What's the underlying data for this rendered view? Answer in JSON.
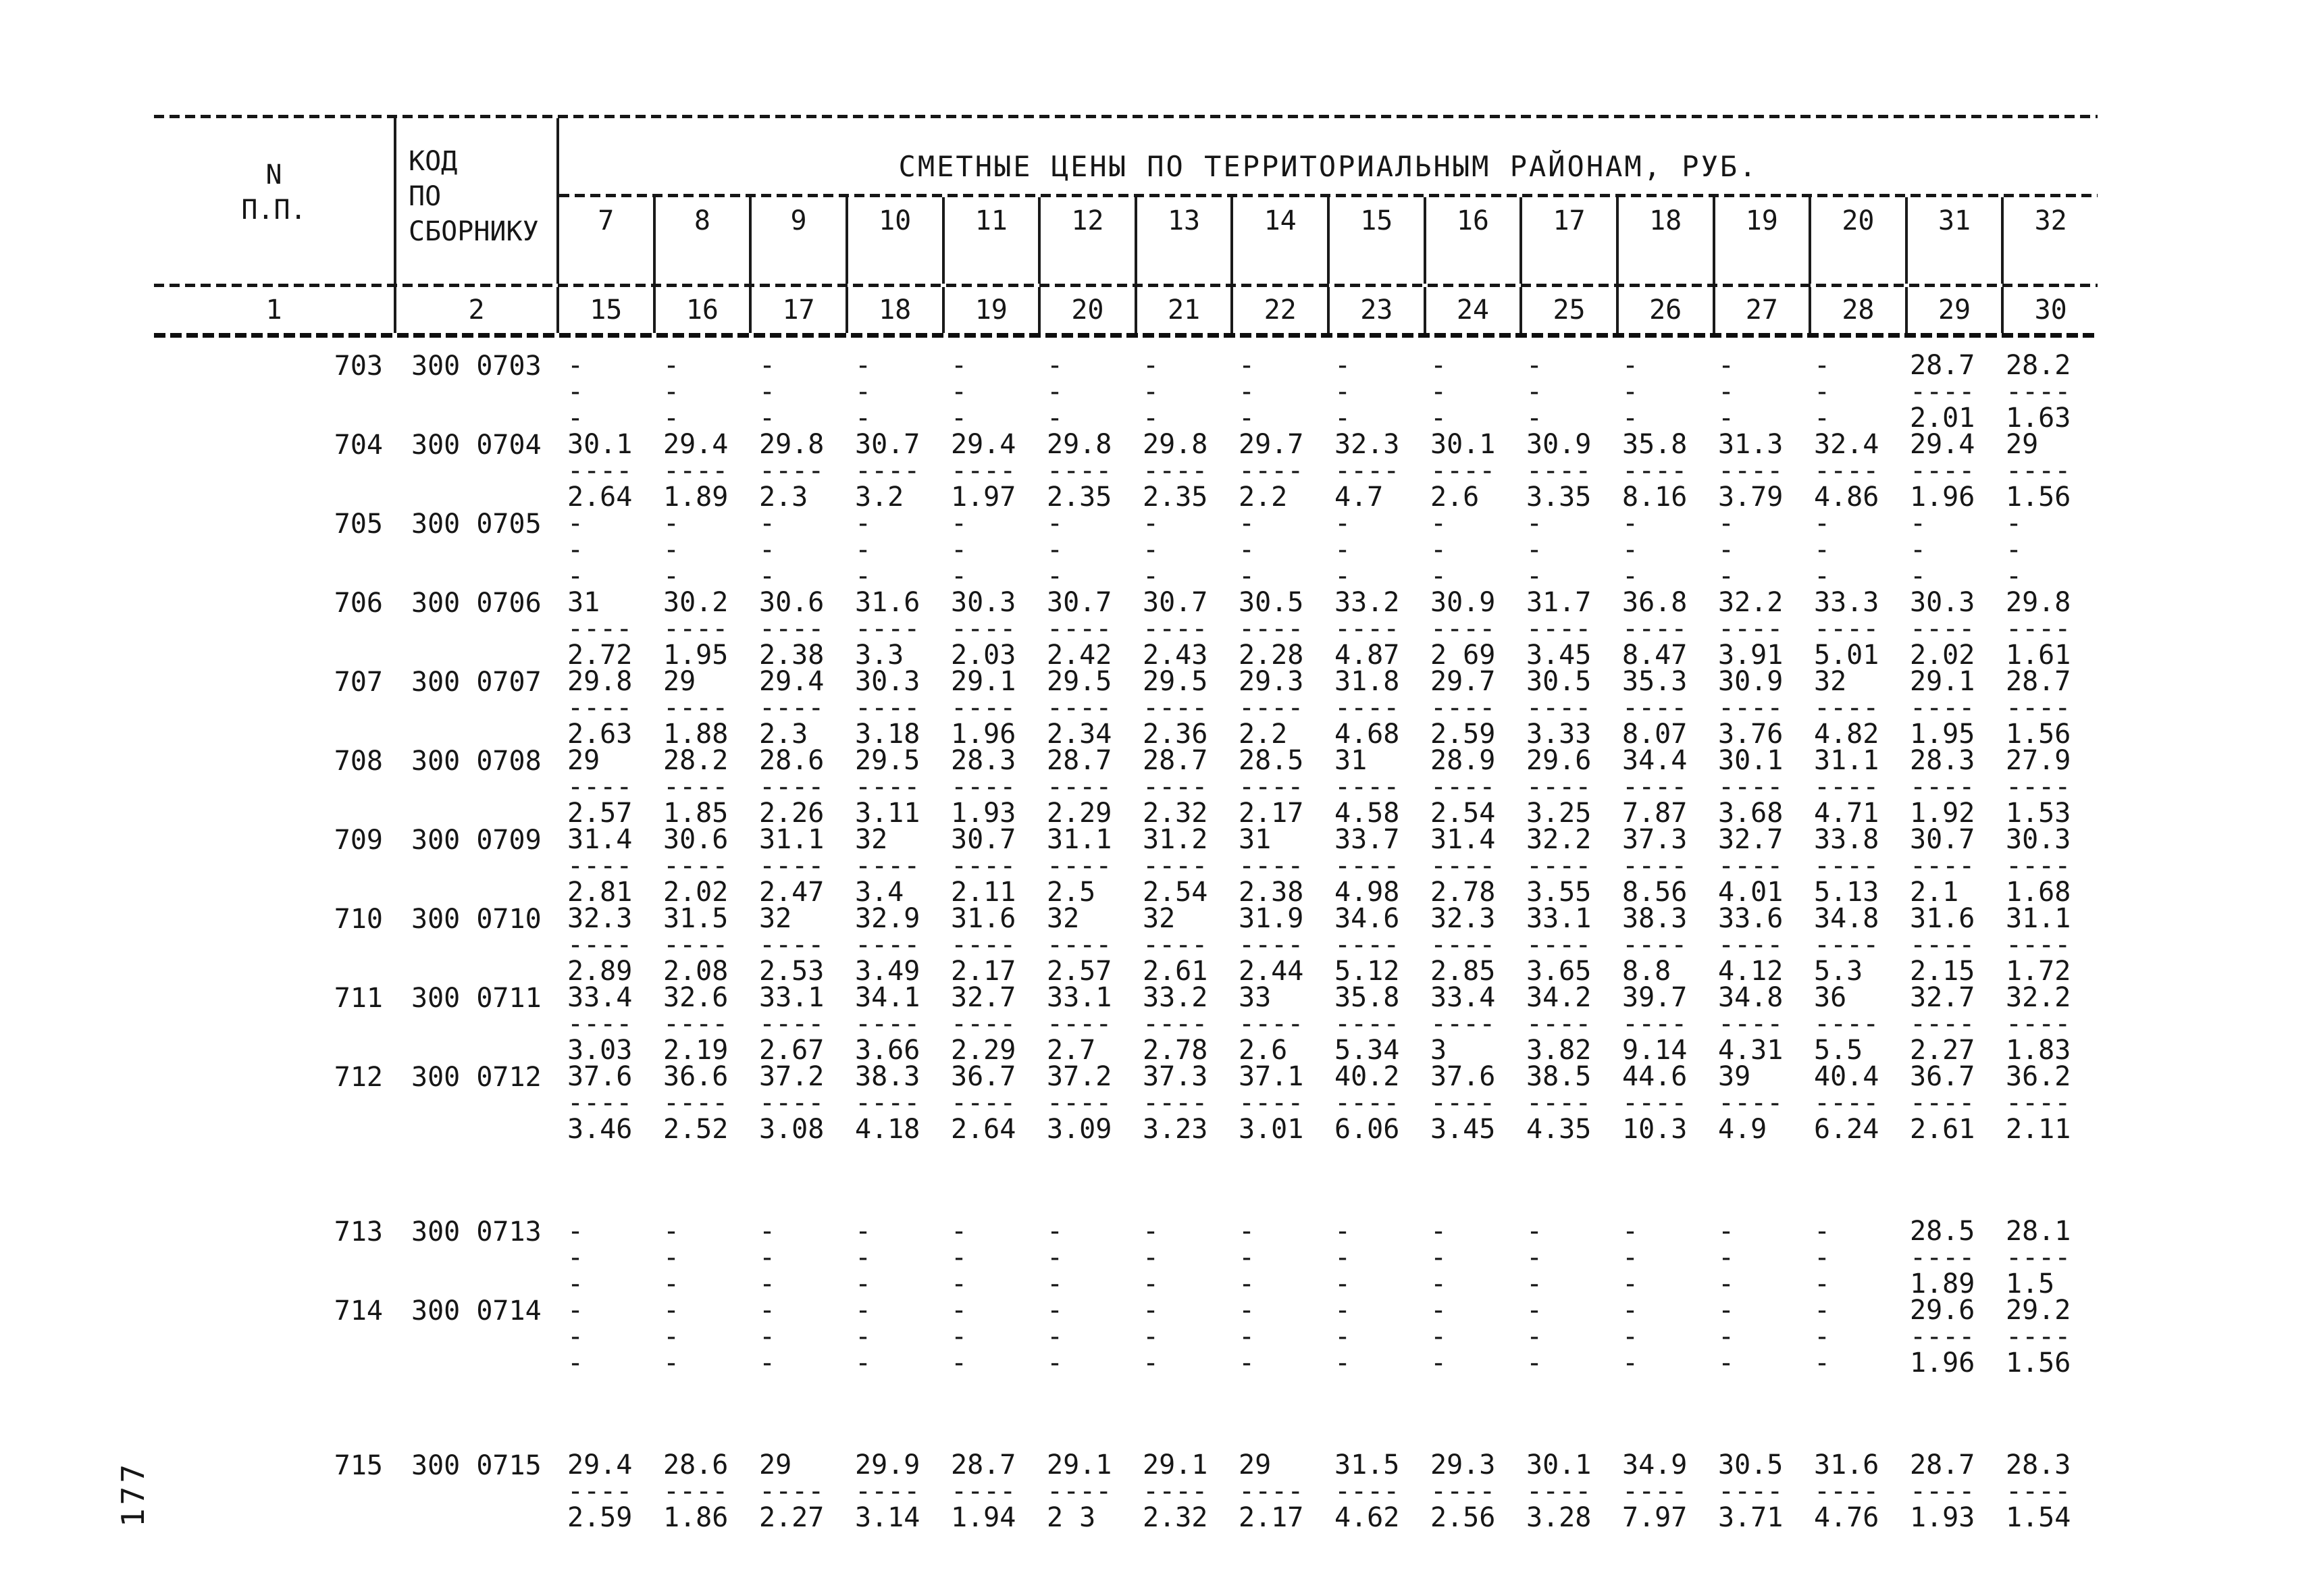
{
  "page_number": "177",
  "table": {
    "title": "СМЕТНЫЕ ЦЕНЫ ПО ТЕРРИТОРИАЛЬНЫМ РАЙОНАМ, РУБ.",
    "col_n_header": [
      "N",
      "П.П."
    ],
    "col_code_header": [
      "КОД",
      "ПО",
      "СБОРНИКУ"
    ],
    "districts": [
      "7",
      "8",
      "9",
      "10",
      "11",
      "12",
      "13",
      "14",
      "15",
      "16",
      "17",
      "18",
      "19",
      "20",
      "31",
      "32"
    ],
    "index_row": [
      "1",
      "2",
      "15",
      "16",
      "17",
      "18",
      "19",
      "20",
      "21",
      "22",
      "23",
      "24",
      "25",
      "26",
      "27",
      "28",
      "29",
      "30"
    ],
    "rows": [
      {
        "n": "703",
        "code": "300 0703",
        "gap": false,
        "tops": [
          "-",
          "-",
          "-",
          "-",
          "-",
          "-",
          "-",
          "-",
          "-",
          "-",
          "-",
          "-",
          "-",
          "-",
          "28.7",
          "28.2"
        ],
        "bots": [
          null,
          null,
          null,
          null,
          null,
          null,
          null,
          null,
          null,
          null,
          null,
          null,
          null,
          null,
          "2.01",
          "1.63"
        ]
      },
      {
        "n": "704",
        "code": "300 0704",
        "gap": false,
        "tops": [
          "30.1",
          "29.4",
          "29.8",
          "30.7",
          "29.4",
          "29.8",
          "29.8",
          "29.7",
          "32.3",
          "30.1",
          "30.9",
          "35.8",
          "31.3",
          "32.4",
          "29.4",
          "29"
        ],
        "bots": [
          "2.64",
          "1.89",
          "2.3",
          "3.2",
          "1.97",
          "2.35",
          "2.35",
          "2.2",
          "4.7",
          "2.6",
          "3.35",
          "8.16",
          "3.79",
          "4.86",
          "1.96",
          "1.56"
        ]
      },
      {
        "n": "705",
        "code": "300 0705",
        "gap": false,
        "tops": [
          "-",
          "-",
          "-",
          "-",
          "-",
          "-",
          "-",
          "-",
          "-",
          "-",
          "-",
          "-",
          "-",
          "-",
          "-",
          "-"
        ],
        "bots": [
          null,
          null,
          null,
          null,
          null,
          null,
          null,
          null,
          null,
          null,
          null,
          null,
          null,
          null,
          null,
          null
        ]
      },
      {
        "n": "706",
        "code": "300 0706",
        "gap": false,
        "tops": [
          "31",
          "30.2",
          "30.6",
          "31.6",
          "30.3",
          "30.7",
          "30.7",
          "30.5",
          "33.2",
          "30.9",
          "31.7",
          "36.8",
          "32.2",
          "33.3",
          "30.3",
          "29.8"
        ],
        "bots": [
          "2.72",
          "1.95",
          "2.38",
          "3.3",
          "2.03",
          "2.42",
          "2.43",
          "2.28",
          "4.87",
          "2 69",
          "3.45",
          "8.47",
          "3.91",
          "5.01",
          "2.02",
          "1.61"
        ]
      },
      {
        "n": "707",
        "code": "300 0707",
        "gap": false,
        "tops": [
          "29.8",
          "29",
          "29.4",
          "30.3",
          "29.1",
          "29.5",
          "29.5",
          "29.3",
          "31.8",
          "29.7",
          "30.5",
          "35.3",
          "30.9",
          "32",
          "29.1",
          "28.7"
        ],
        "bots": [
          "2.63",
          "1.88",
          "2.3",
          "3.18",
          "1.96",
          "2.34",
          "2.36",
          "2.2",
          "4.68",
          "2.59",
          "3.33",
          "8.07",
          "3.76",
          "4.82",
          "1.95",
          "1.56"
        ]
      },
      {
        "n": "708",
        "code": "300 0708",
        "gap": false,
        "tops": [
          "29",
          "28.2",
          "28.6",
          "29.5",
          "28.3",
          "28.7",
          "28.7",
          "28.5",
          "31",
          "28.9",
          "29.6",
          "34.4",
          "30.1",
          "31.1",
          "28.3",
          "27.9"
        ],
        "bots": [
          "2.57",
          "1.85",
          "2.26",
          "3.11",
          "1.93",
          "2.29",
          "2.32",
          "2.17",
          "4.58",
          "2.54",
          "3.25",
          "7.87",
          "3.68",
          "4.71",
          "1.92",
          "1.53"
        ]
      },
      {
        "n": "709",
        "code": "300 0709",
        "gap": false,
        "tops": [
          "31.4",
          "30.6",
          "31.1",
          "32",
          "30.7",
          "31.1",
          "31.2",
          "31",
          "33.7",
          "31.4",
          "32.2",
          "37.3",
          "32.7",
          "33.8",
          "30.7",
          "30.3"
        ],
        "bots": [
          "2.81",
          "2.02",
          "2.47",
          "3.4",
          "2.11",
          "2.5",
          "2.54",
          "2.38",
          "4.98",
          "2.78",
          "3.55",
          "8.56",
          "4.01",
          "5.13",
          "2.1",
          "1.68"
        ]
      },
      {
        "n": "710",
        "code": "300 0710",
        "gap": false,
        "tops": [
          "32.3",
          "31.5",
          "32",
          "32.9",
          "31.6",
          "32",
          "32",
          "31.9",
          "34.6",
          "32.3",
          "33.1",
          "38.3",
          "33.6",
          "34.8",
          "31.6",
          "31.1"
        ],
        "bots": [
          "2.89",
          "2.08",
          "2.53",
          "3.49",
          "2.17",
          "2.57",
          "2.61",
          "2.44",
          "5.12",
          "2.85",
          "3.65",
          "8.8",
          "4.12",
          "5.3",
          "2.15",
          "1.72"
        ]
      },
      {
        "n": "711",
        "code": "300 0711",
        "gap": false,
        "tops": [
          "33.4",
          "32.6",
          "33.1",
          "34.1",
          "32.7",
          "33.1",
          "33.2",
          "33",
          "35.8",
          "33.4",
          "34.2",
          "39.7",
          "34.8",
          "36",
          "32.7",
          "32.2"
        ],
        "bots": [
          "3.03",
          "2.19",
          "2.67",
          "3.66",
          "2.29",
          "2.7",
          "2.78",
          "2.6",
          "5.34",
          "3",
          "3.82",
          "9.14",
          "4.31",
          "5.5",
          "2.27",
          "1.83"
        ]
      },
      {
        "n": "712",
        "code": "300 0712",
        "gap": false,
        "tops": [
          "37.6",
          "36.6",
          "37.2",
          "38.3",
          "36.7",
          "37.2",
          "37.3",
          "37.1",
          "40.2",
          "37.6",
          "38.5",
          "44.6",
          "39",
          "40.4",
          "36.7",
          "36.2"
        ],
        "bots": [
          "3.46",
          "2.52",
          "3.08",
          "4.18",
          "2.64",
          "3.09",
          "3.23",
          "3.01",
          "6.06",
          "3.45",
          "4.35",
          "10.3",
          "4.9",
          "6.24",
          "2.61",
          "2.11"
        ]
      },
      {
        "n": "713",
        "code": "300 0713",
        "gap": true,
        "tops": [
          "-",
          "-",
          "-",
          "-",
          "-",
          "-",
          "-",
          "-",
          "-",
          "-",
          "-",
          "-",
          "-",
          "-",
          "28.5",
          "28.1"
        ],
        "bots": [
          null,
          null,
          null,
          null,
          null,
          null,
          null,
          null,
          null,
          null,
          null,
          null,
          null,
          null,
          "1.89",
          "1.5"
        ]
      },
      {
        "n": "714",
        "code": "300 0714",
        "gap": false,
        "tops": [
          "-",
          "-",
          "-",
          "-",
          "-",
          "-",
          "-",
          "-",
          "-",
          "-",
          "-",
          "-",
          "-",
          "-",
          "29.6",
          "29.2"
        ],
        "bots": [
          null,
          null,
          null,
          null,
          null,
          null,
          null,
          null,
          null,
          null,
          null,
          null,
          null,
          null,
          "1.96",
          "1.56"
        ]
      },
      {
        "n": "715",
        "code": "300 0715",
        "gap": true,
        "tops": [
          "29.4",
          "28.6",
          "29",
          "29.9",
          "28.7",
          "29.1",
          "29.1",
          "29",
          "31.5",
          "29.3",
          "30.1",
          "34.9",
          "30.5",
          "31.6",
          "28.7",
          "28.3"
        ],
        "bots": [
          "2.59",
          "1.86",
          "2.27",
          "3.14",
          "1.94",
          "2 3",
          "2.32",
          "2.17",
          "4.62",
          "2.56",
          "3.28",
          "7.97",
          "3.71",
          "4.76",
          "1.93",
          "1.54"
        ]
      }
    ]
  }
}
